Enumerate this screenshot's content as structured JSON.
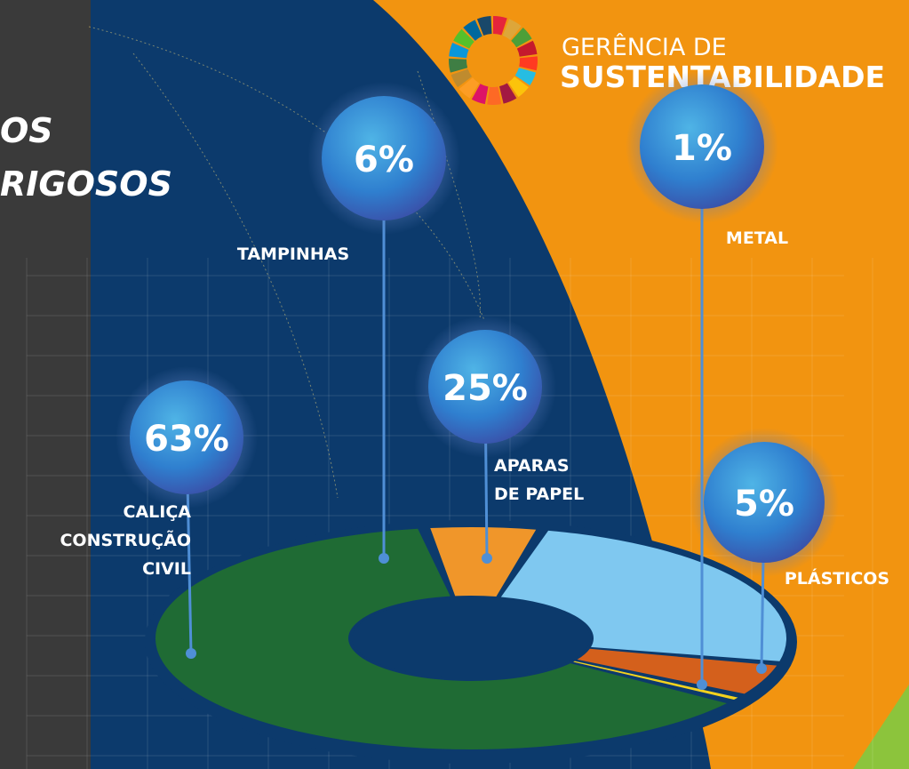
{
  "chart_data": {
    "type": "pie",
    "title_lines": [
      "OS",
      "RIGOSOS"
    ],
    "logo": {
      "line1": "GERÊNCIA DE",
      "line2": "SUSTENTABILIDADE"
    },
    "categories": [
      "CALIÇA\nCONSTRUÇÃO\nCIVIL",
      "TAMPINHAS",
      "APARAS\nDE PAPEL",
      "PLÁSTICOS",
      "METAL"
    ],
    "values": [
      63,
      6,
      25,
      5,
      1
    ],
    "value_labels": [
      "63%",
      "6%",
      "25%",
      "5%",
      "1%"
    ],
    "colors": [
      "#1f6b34",
      "#f0962a",
      "#7fc8f0",
      "#d4601c",
      "#f2d21e"
    ]
  }
}
